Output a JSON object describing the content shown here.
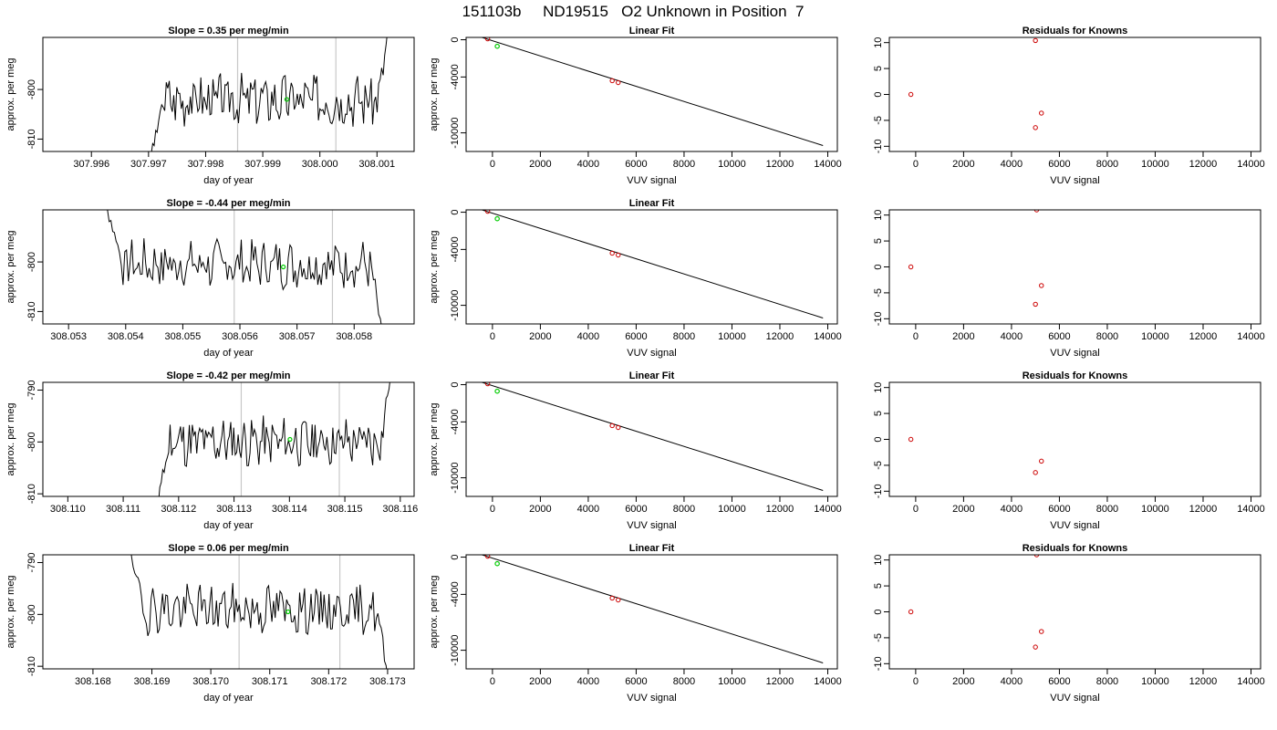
{
  "page_title": "151103b     ND19515   O2 Unknown in Position  7",
  "chart_data": [
    {
      "type": "line",
      "row": 0,
      "col": 0,
      "title": "Slope =  0.35  per meg/min",
      "xlabel": "day of year",
      "ylabel": "approx. per meg",
      "xlim": [
        307.99515,
        308.00165
      ],
      "ylim": [
        -812.5,
        -789.5
      ],
      "xticks": [
        307.996,
        307.997,
        307.998,
        307.999,
        308.0,
        308.001
      ],
      "xtick_labels": [
        "307.996",
        "307.997",
        "307.998",
        "307.999",
        "308.000",
        "308.001"
      ],
      "yticks": [
        -810,
        -800
      ],
      "ytick_labels": [
        "-810",
        "-800"
      ],
      "vlines": [
        307.99856,
        308.00028
      ],
      "marker": {
        "x": 307.99942,
        "y": -802
      },
      "series": [
        {
          "x_start": 307.99702,
          "x_end": 308.00124,
          "start_y": -815,
          "end_y": -784,
          "noise_seed": 3,
          "level": -802,
          "jitter": 4.5
        }
      ]
    },
    {
      "type": "scatter",
      "row": 0,
      "col": 1,
      "title": "Linear Fit",
      "xlabel": "VUV signal",
      "ylabel": "approx. per meg",
      "xlim": [
        -1100,
        14400
      ],
      "ylim": [
        -12000,
        250
      ],
      "xticks": [
        0,
        2000,
        4000,
        6000,
        8000,
        10000,
        12000,
        14000
      ],
      "xtick_labels": [
        "0",
        "2000",
        "4000",
        "6000",
        "8000",
        "10000",
        "12000",
        "14000"
      ],
      "yticks": [
        0,
        -4000,
        -10000
      ],
      "ytick_labels": [
        "0",
        "-4000",
        "-10000"
      ],
      "fit_line": {
        "x": [
          -500,
          13800
        ],
        "y": [
          300,
          -11360
        ]
      },
      "points": [
        {
          "x": -200,
          "y": 100
        },
        {
          "x": 5000,
          "y": -4400
        },
        {
          "x": 5250,
          "y": -4600
        }
      ],
      "unknown_points": [
        {
          "x": 200,
          "y": -700
        }
      ]
    },
    {
      "type": "scatter",
      "row": 0,
      "col": 2,
      "title": "Residuals for Knowns",
      "xlabel": "VUV signal",
      "ylabel": "",
      "xlim": [
        -1100,
        14400
      ],
      "ylim": [
        -11,
        11
      ],
      "xticks": [
        0,
        2000,
        4000,
        6000,
        8000,
        10000,
        12000,
        14000
      ],
      "xtick_labels": [
        "0",
        "2000",
        "4000",
        "6000",
        "8000",
        "10000",
        "12000",
        "14000"
      ],
      "yticks": [
        10,
        5,
        0,
        -5,
        -10
      ],
      "ytick_labels": [
        "10",
        "5",
        "0",
        "-5",
        "-10"
      ],
      "points": [
        {
          "x": -200,
          "y": 0
        },
        {
          "x": 5000,
          "y": 10.4
        },
        {
          "x": 5000,
          "y": -6.4
        },
        {
          "x": 5250,
          "y": -3.6
        }
      ]
    },
    {
      "type": "line",
      "row": 1,
      "col": 0,
      "title": "Slope =  -0.44  per meg/min",
      "xlabel": "day of year",
      "ylabel": "approx. per meg",
      "xlim": [
        308.05255,
        308.05905
      ],
      "ylim": [
        -812.5,
        -789.5
      ],
      "xticks": [
        308.053,
        308.054,
        308.055,
        308.056,
        308.057,
        308.058
      ],
      "xtick_labels": [
        "308.053",
        "308.054",
        "308.055",
        "308.056",
        "308.057",
        "308.058"
      ],
      "yticks": [
        -810,
        -800
      ],
      "ytick_labels": [
        "-810",
        "-800"
      ],
      "vlines": [
        308.0559,
        308.05762
      ],
      "marker": {
        "x": 308.05676,
        "y": -801
      },
      "series": [
        {
          "x_start": 308.05365,
          "x_end": 308.05852,
          "start_y": -788,
          "end_y": -816,
          "noise_seed": 7,
          "level": -800.5,
          "jitter": 4.2
        }
      ]
    },
    {
      "type": "scatter",
      "row": 1,
      "col": 1,
      "title": "Linear Fit",
      "xlabel": "VUV signal",
      "ylabel": "approx. per meg",
      "xlim": [
        -1100,
        14400
      ],
      "ylim": [
        -12000,
        250
      ],
      "xticks": [
        0,
        2000,
        4000,
        6000,
        8000,
        10000,
        12000,
        14000
      ],
      "xtick_labels": [
        "0",
        "2000",
        "4000",
        "6000",
        "8000",
        "10000",
        "12000",
        "14000"
      ],
      "yticks": [
        0,
        -4000,
        -10000
      ],
      "ytick_labels": [
        "0",
        "-4000",
        "-10000"
      ],
      "fit_line": {
        "x": [
          -500,
          13800
        ],
        "y": [
          300,
          -11360
        ]
      },
      "points": [
        {
          "x": -200,
          "y": 100
        },
        {
          "x": 5000,
          "y": -4400
        },
        {
          "x": 5250,
          "y": -4600
        }
      ],
      "unknown_points": [
        {
          "x": 200,
          "y": -700
        }
      ]
    },
    {
      "type": "scatter",
      "row": 1,
      "col": 2,
      "title": "",
      "xlabel": "VUV signal",
      "ylabel": "",
      "xlim": [
        -1100,
        14400
      ],
      "ylim": [
        -11,
        11
      ],
      "xticks": [
        0,
        2000,
        4000,
        6000,
        8000,
        10000,
        12000,
        14000
      ],
      "xtick_labels": [
        "0",
        "2000",
        "4000",
        "6000",
        "8000",
        "10000",
        "12000",
        "14000"
      ],
      "yticks": [
        10,
        5,
        0,
        -5,
        -10
      ],
      "ytick_labels": [
        "10",
        "5",
        "0",
        "-5",
        "-10"
      ],
      "points": [
        {
          "x": -200,
          "y": 0
        },
        {
          "x": 5050,
          "y": 11
        },
        {
          "x": 5000,
          "y": -7.2
        },
        {
          "x": 5250,
          "y": -3.6
        }
      ]
    },
    {
      "type": "line",
      "row": 2,
      "col": 0,
      "title": "Slope =  -0.42  per meg/min",
      "xlabel": "day of year",
      "ylabel": "approx. per meg",
      "xlim": [
        308.10955,
        308.11625
      ],
      "ylim": [
        -810.5,
        -788.5
      ],
      "xticks": [
        308.11,
        308.111,
        308.112,
        308.113,
        308.114,
        308.115,
        308.116
      ],
      "xtick_labels": [
        "308.110",
        "308.111",
        "308.112",
        "308.113",
        "308.114",
        "308.115",
        "308.116"
      ],
      "yticks": [
        -810,
        -800,
        -790
      ],
      "ytick_labels": [
        "-810",
        "-800",
        "-790"
      ],
      "vlines": [
        308.11313,
        308.1149
      ],
      "marker": {
        "x": 308.11401,
        "y": -799.5
      },
      "series": [
        {
          "x_start": 308.11158,
          "x_end": 308.11585,
          "start_y": -814,
          "end_y": -786,
          "noise_seed": 11,
          "level": -800,
          "jitter": 4.0
        }
      ]
    },
    {
      "type": "scatter",
      "row": 2,
      "col": 1,
      "title": "Linear Fit",
      "xlabel": "VUV signal",
      "ylabel": "approx. per meg",
      "xlim": [
        -1100,
        14400
      ],
      "ylim": [
        -12000,
        250
      ],
      "xticks": [
        0,
        2000,
        4000,
        6000,
        8000,
        10000,
        12000,
        14000
      ],
      "xtick_labels": [
        "0",
        "2000",
        "4000",
        "6000",
        "8000",
        "10000",
        "12000",
        "14000"
      ],
      "yticks": [
        0,
        -4000,
        -10000
      ],
      "ytick_labels": [
        "0",
        "-4000",
        "-10000"
      ],
      "fit_line": {
        "x": [
          -500,
          13800
        ],
        "y": [
          300,
          -11360
        ]
      },
      "points": [
        {
          "x": -200,
          "y": 100
        },
        {
          "x": 5000,
          "y": -4400
        },
        {
          "x": 5250,
          "y": -4600
        }
      ],
      "unknown_points": [
        {
          "x": 200,
          "y": -700
        }
      ]
    },
    {
      "type": "scatter",
      "row": 2,
      "col": 2,
      "title": "Residuals for Knowns",
      "xlabel": "VUV signal",
      "ylabel": "",
      "xlim": [
        -1100,
        14400
      ],
      "ylim": [
        -11,
        11
      ],
      "xticks": [
        0,
        2000,
        4000,
        6000,
        8000,
        10000,
        12000,
        14000
      ],
      "xtick_labels": [
        "0",
        "2000",
        "4000",
        "6000",
        "8000",
        "10000",
        "12000",
        "14000"
      ],
      "yticks": [
        10,
        5,
        0,
        -5,
        -10
      ],
      "ytick_labels": [
        "10",
        "5",
        "0",
        "-5",
        "-10"
      ],
      "points": [
        {
          "x": -200,
          "y": 0
        },
        {
          "x": 5000,
          "y": -6.4
        },
        {
          "x": 5250,
          "y": -4.2
        }
      ]
    },
    {
      "type": "line",
      "row": 3,
      "col": 0,
      "title": "Slope =  0.06  per meg/min",
      "xlabel": "day of year",
      "ylabel": "approx. per meg",
      "xlim": [
        308.16715,
        308.17345
      ],
      "ylim": [
        -810.5,
        -788.5
      ],
      "xticks": [
        308.168,
        308.169,
        308.17,
        308.171,
        308.172,
        308.173
      ],
      "xtick_labels": [
        "308.168",
        "308.169",
        "308.170",
        "308.171",
        "308.172",
        "308.173"
      ],
      "yticks": [
        -810,
        -800,
        -790
      ],
      "ytick_labels": [
        "-810",
        "-800",
        "-790"
      ],
      "vlines": [
        308.17048,
        308.17219
      ],
      "marker": {
        "x": 308.17131,
        "y": -799.5
      },
      "series": [
        {
          "x_start": 308.1686,
          "x_end": 308.17303,
          "start_y": -786,
          "end_y": -814,
          "noise_seed": 19,
          "level": -799,
          "jitter": 4.0
        }
      ]
    },
    {
      "type": "scatter",
      "row": 3,
      "col": 1,
      "title": "Linear Fit",
      "xlabel": "VUV signal",
      "ylabel": "approx. per meg",
      "xlim": [
        -1100,
        14400
      ],
      "ylim": [
        -12000,
        250
      ],
      "xticks": [
        0,
        2000,
        4000,
        6000,
        8000,
        10000,
        12000,
        14000
      ],
      "xtick_labels": [
        "0",
        "2000",
        "4000",
        "6000",
        "8000",
        "10000",
        "12000",
        "14000"
      ],
      "yticks": [
        0,
        -4000,
        -10000
      ],
      "ytick_labels": [
        "0",
        "-4000",
        "-10000"
      ],
      "fit_line": {
        "x": [
          -500,
          13800
        ],
        "y": [
          300,
          -11360
        ]
      },
      "points": [
        {
          "x": -200,
          "y": 100
        },
        {
          "x": 5000,
          "y": -4400
        },
        {
          "x": 5250,
          "y": -4600
        }
      ],
      "unknown_points": [
        {
          "x": 200,
          "y": -700
        }
      ]
    },
    {
      "type": "scatter",
      "row": 3,
      "col": 2,
      "title": "Residuals for Knowns",
      "xlabel": "VUV signal",
      "ylabel": "",
      "xlim": [
        -1100,
        14400
      ],
      "ylim": [
        -11,
        11
      ],
      "xticks": [
        0,
        2000,
        4000,
        6000,
        8000,
        10000,
        12000,
        14000
      ],
      "xtick_labels": [
        "0",
        "2000",
        "4000",
        "6000",
        "8000",
        "10000",
        "12000",
        "14000"
      ],
      "yticks": [
        10,
        5,
        0,
        -5,
        -10
      ],
      "ytick_labels": [
        "10",
        "5",
        "0",
        "-5",
        "-10"
      ],
      "points": [
        {
          "x": -200,
          "y": 0
        },
        {
          "x": 5050,
          "y": 11
        },
        {
          "x": 5000,
          "y": -6.8
        },
        {
          "x": 5250,
          "y": -3.8
        }
      ]
    }
  ],
  "colors": {
    "line": "#000000",
    "vline": "#c8c8c8",
    "marker_unknown": "#00cc00",
    "point_open": "#cc0000",
    "fit_line": "#000000"
  }
}
